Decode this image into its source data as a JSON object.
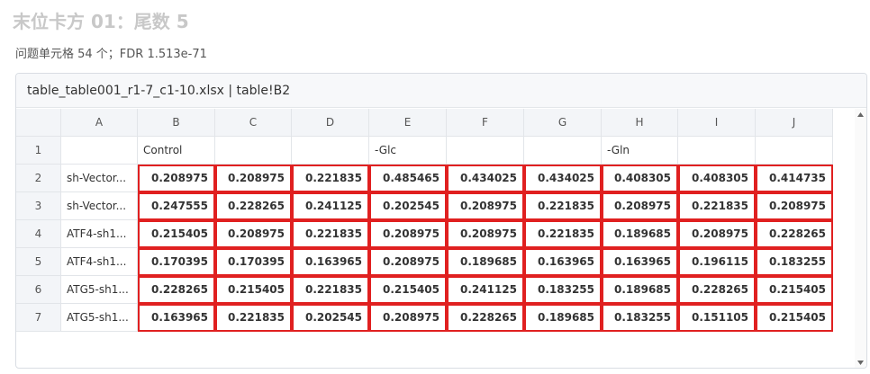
{
  "header": {
    "title": "末位卡方 01：尾数 5",
    "subtitle": "问题单元格 54 个；FDR 1.513e-71"
  },
  "panel": {
    "file": "table_table001_r1-7_c1-10.xlsx | table!B2"
  },
  "table": {
    "columns": [
      "A",
      "B",
      "C",
      "D",
      "E",
      "F",
      "G",
      "H",
      "I",
      "J"
    ],
    "rows": [
      {
        "number": 1,
        "cells": [
          null,
          "Control",
          null,
          null,
          "-Glc",
          null,
          null,
          "-Gln",
          null,
          null
        ]
      },
      {
        "number": 2,
        "cells": [
          "sh-Vector...",
          0.208975,
          0.208975,
          0.221835,
          0.485465,
          0.434025,
          0.434025,
          0.408305,
          0.408305,
          0.414735
        ]
      },
      {
        "number": 3,
        "cells": [
          "sh-Vector...",
          0.247555,
          0.228265,
          0.241125,
          0.202545,
          0.208975,
          0.221835,
          0.208975,
          0.221835,
          0.208975
        ]
      },
      {
        "number": 4,
        "cells": [
          "ATF4-sh1...",
          0.215405,
          0.208975,
          0.221835,
          0.208975,
          0.208975,
          0.221835,
          0.189685,
          0.208975,
          0.228265
        ]
      },
      {
        "number": 5,
        "cells": [
          "ATF4-sh1...",
          0.170395,
          0.170395,
          0.163965,
          0.208975,
          0.189685,
          0.163965,
          0.163965,
          0.196115,
          0.183255
        ]
      },
      {
        "number": 6,
        "cells": [
          "ATG5-sh1...",
          0.228265,
          0.215405,
          0.221835,
          0.215405,
          0.241125,
          0.183255,
          0.189685,
          0.228265,
          0.215405
        ]
      },
      {
        "number": 7,
        "cells": [
          "ATG5-sh1...",
          0.163965,
          0.221835,
          0.202545,
          0.208975,
          0.228265,
          0.189685,
          0.183255,
          0.151105,
          0.215405
        ]
      }
    ]
  }
}
